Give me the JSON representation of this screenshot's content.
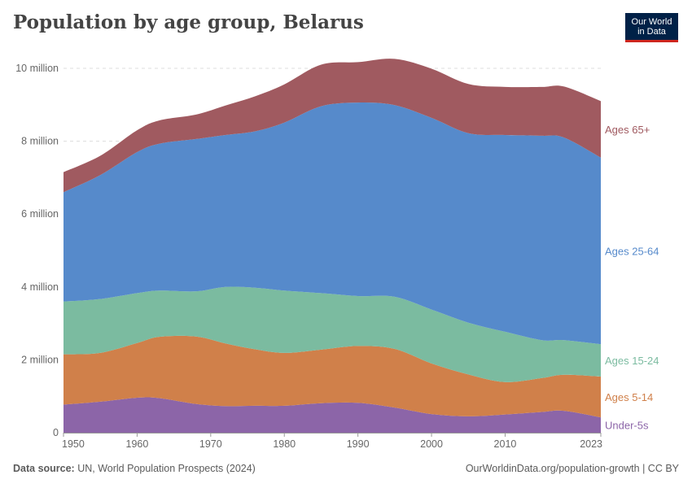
{
  "header": {
    "title": "Population by age group, Belarus"
  },
  "logo": {
    "line1": "Our World",
    "line2": "in Data"
  },
  "footer": {
    "source_label": "Data source:",
    "source_text": "UN, World Population Prospects (2024)",
    "url": "OurWorldinData.org/population-growth | CC BY"
  },
  "chart_data": {
    "type": "area",
    "stacked": true,
    "title": "Population by age group, Belarus",
    "xlabel": "",
    "ylabel": "",
    "x": [
      1950,
      1955,
      1960,
      1963,
      1968,
      1972,
      1976,
      1980,
      1985,
      1990,
      1995,
      2000,
      2005,
      2010,
      2015,
      2018,
      2023
    ],
    "xlim": [
      1950,
      2023
    ],
    "ylim": [
      0,
      10000000
    ],
    "x_ticks": [
      1950,
      1960,
      1970,
      1980,
      1990,
      2000,
      2010,
      2023
    ],
    "y_ticks": [
      0,
      2000000,
      4000000,
      6000000,
      8000000,
      10000000
    ],
    "y_tick_labels": [
      "0",
      "2 million",
      "4 million",
      "6 million",
      "8 million",
      "10 million"
    ],
    "series": [
      {
        "name": "Under-5s",
        "label": "Under-5s",
        "color": "#8c65a8",
        "values": [
          770000,
          850000,
          960000,
          950000,
          790000,
          730000,
          740000,
          740000,
          810000,
          820000,
          690000,
          510000,
          450000,
          500000,
          570000,
          600000,
          420000
        ]
      },
      {
        "name": "Ages 5-14",
        "label": "Ages 5-14",
        "color": "#d0804a",
        "values": [
          1380000,
          1340000,
          1500000,
          1680000,
          1850000,
          1720000,
          1550000,
          1450000,
          1470000,
          1560000,
          1610000,
          1390000,
          1150000,
          890000,
          930000,
          990000,
          1120000
        ]
      },
      {
        "name": "Ages 15-24",
        "label": "Ages 15-24",
        "color": "#7bbba0",
        "values": [
          1450000,
          1480000,
          1370000,
          1270000,
          1240000,
          1550000,
          1690000,
          1710000,
          1550000,
          1370000,
          1430000,
          1480000,
          1420000,
          1380000,
          1040000,
          950000,
          890000
        ]
      },
      {
        "name": "Ages 25-64",
        "label": "Ages 25-64",
        "color": "#568acb",
        "values": [
          3000000,
          3400000,
          3870000,
          4030000,
          4180000,
          4170000,
          4290000,
          4610000,
          5130000,
          5310000,
          5260000,
          5260000,
          5200000,
          5400000,
          5610000,
          5560000,
          5120000
        ]
      },
      {
        "name": "Ages 65+",
        "label": "Ages 65+",
        "color": "#a05a60",
        "values": [
          550000,
          530000,
          600000,
          640000,
          670000,
          810000,
          960000,
          1050000,
          1140000,
          1110000,
          1270000,
          1350000,
          1350000,
          1320000,
          1340000,
          1400000,
          1550000
        ]
      }
    ]
  }
}
